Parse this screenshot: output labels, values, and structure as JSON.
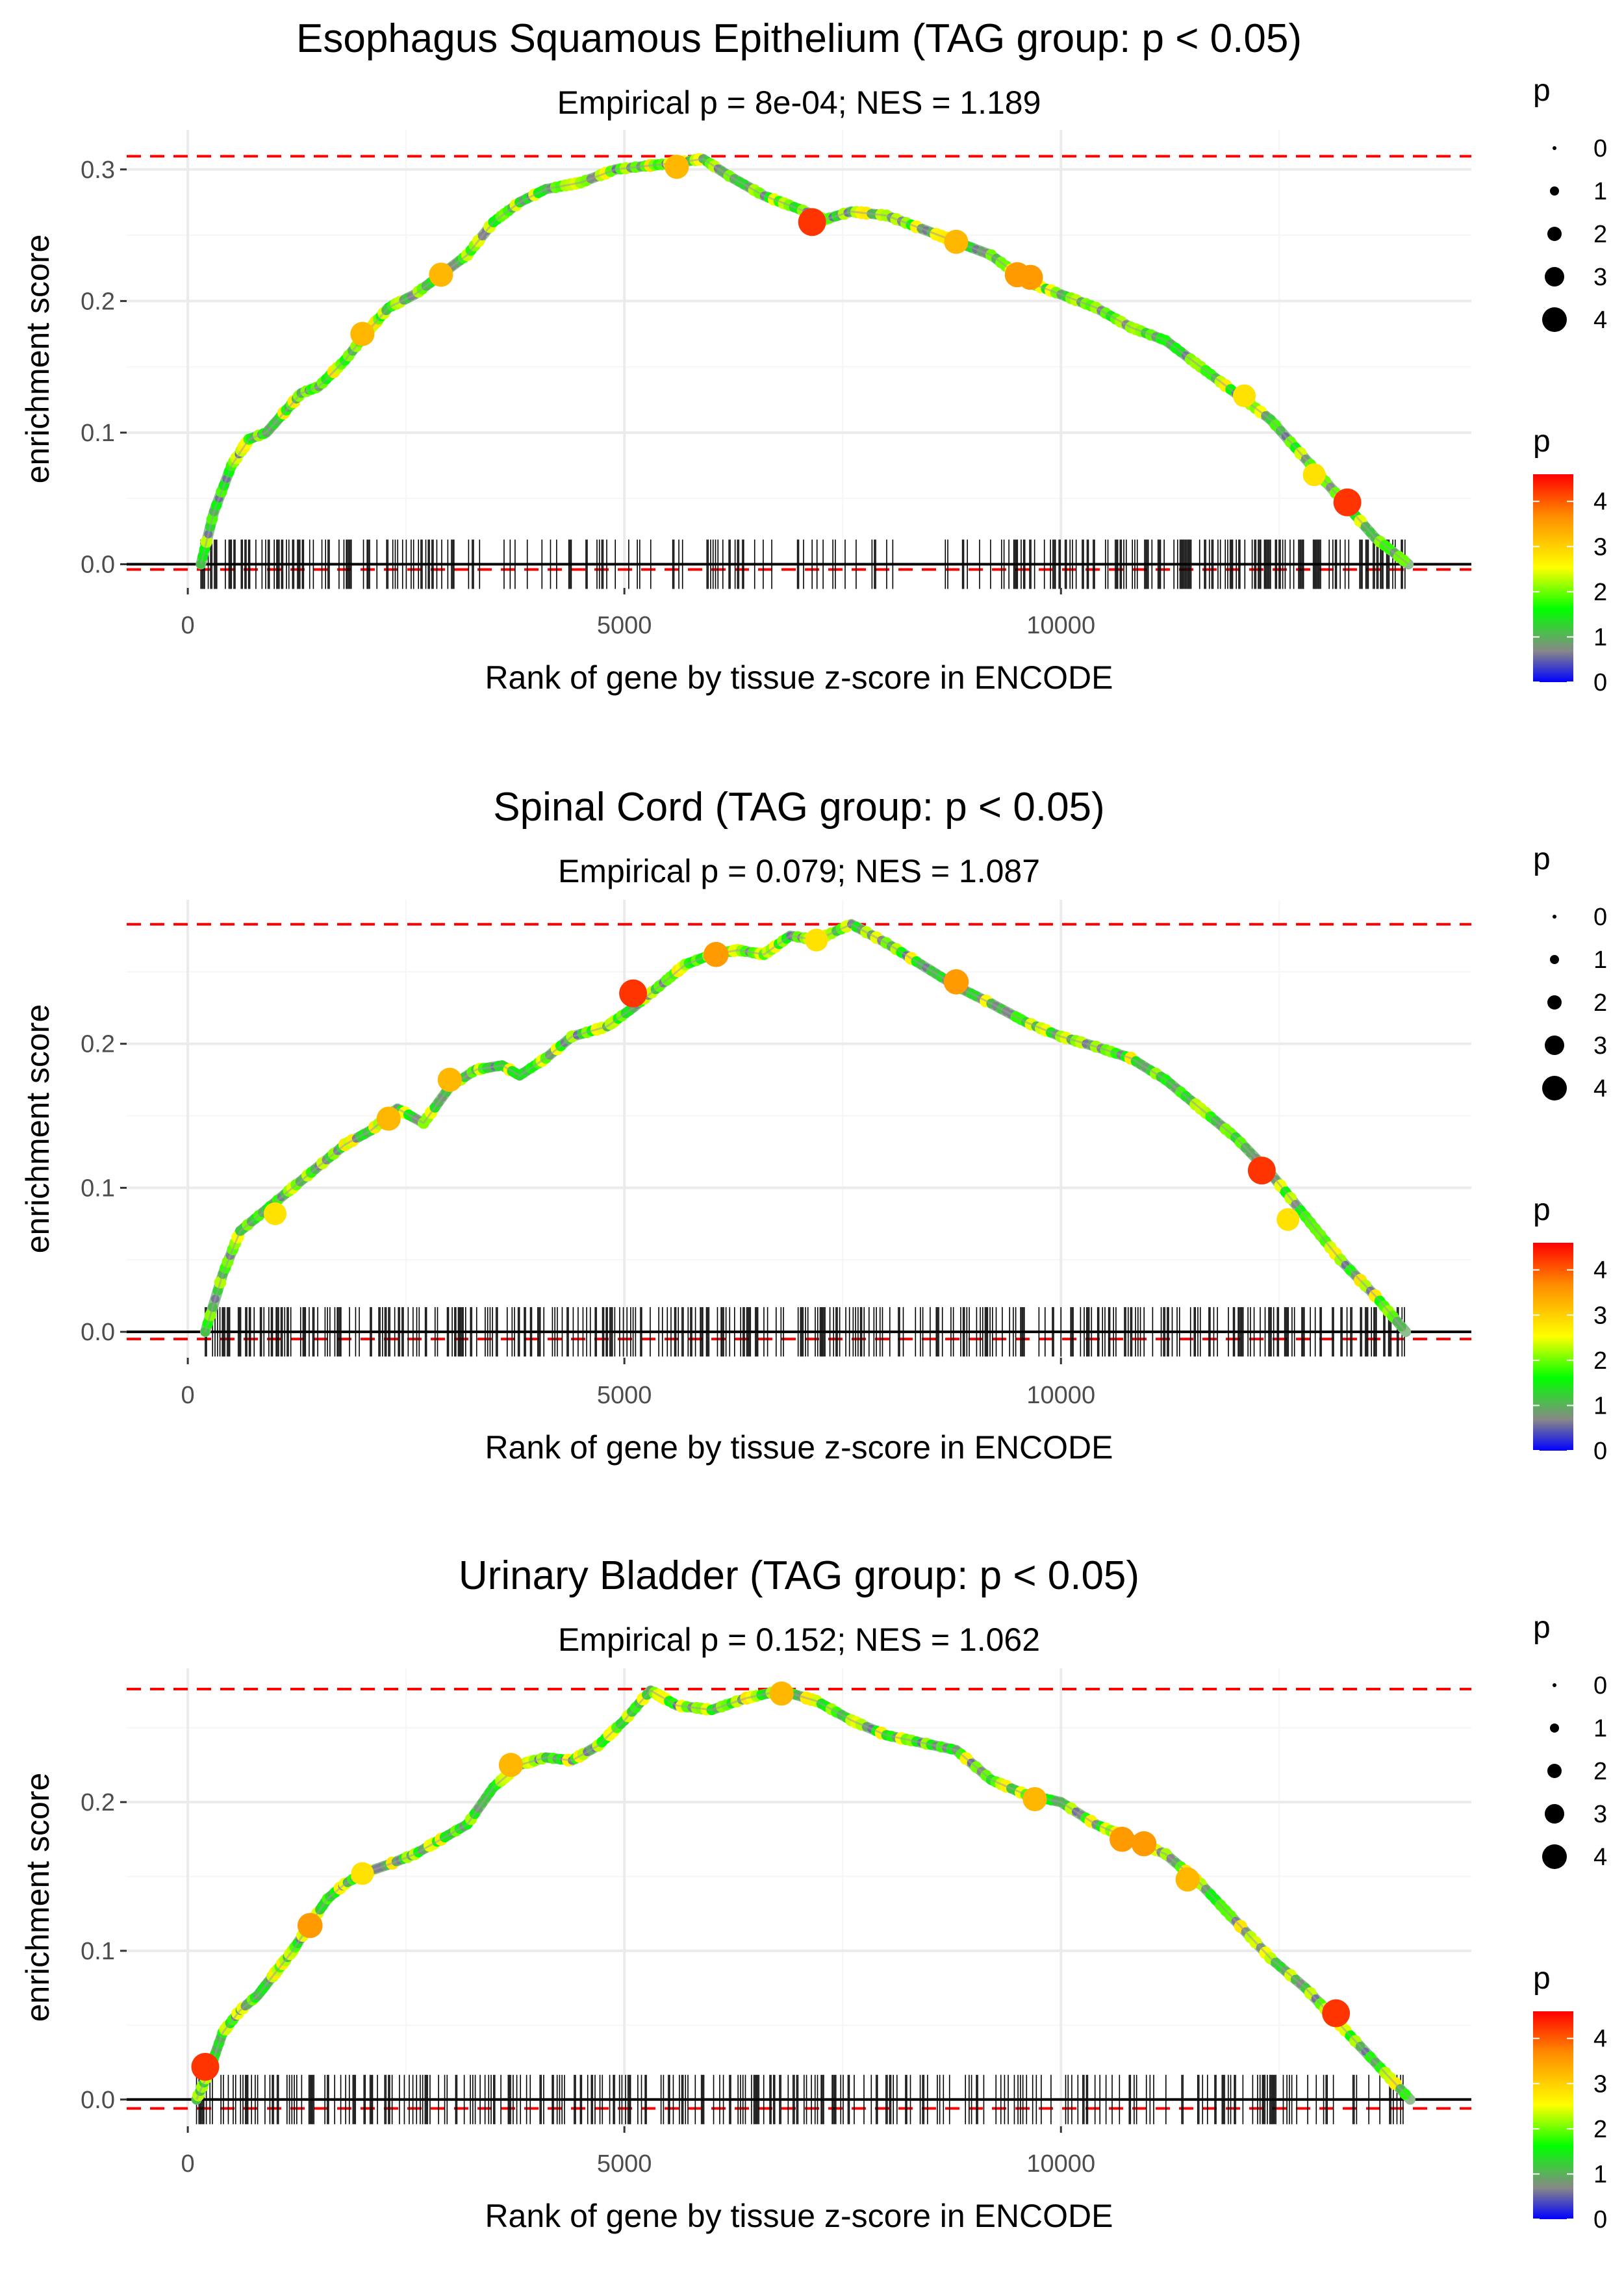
{
  "chart_data": [
    {
      "type": "line",
      "title": "Esophagus Squamous Epithelium (TAG group: p < 0.05)",
      "subtitle": "Empirical p = 8e-04; NES = 1.189",
      "xlabel": "Rank of gene by tissue z-score in ENCODE",
      "ylabel": "enrichment score",
      "xlim": [
        -700,
        14700
      ],
      "ylim": [
        -0.018,
        0.33
      ],
      "x_ticks": [
        0,
        5000,
        10000
      ],
      "x_tick_labels": [
        "0",
        "5000",
        "10000"
      ],
      "y_ticks": [
        0,
        0.1,
        0.2,
        0.3
      ],
      "y_tick_labels": [
        "0.0",
        "0.1",
        "0.2",
        "0.3"
      ],
      "max_es": 0.31,
      "min_es": -0.004,
      "curve": [
        [
          150,
          0.0
        ],
        [
          300,
          0.04
        ],
        [
          500,
          0.075
        ],
        [
          700,
          0.095
        ],
        [
          900,
          0.1
        ],
        [
          1100,
          0.115
        ],
        [
          1300,
          0.13
        ],
        [
          1500,
          0.135
        ],
        [
          1800,
          0.155
        ],
        [
          2100,
          0.18
        ],
        [
          2300,
          0.195
        ],
        [
          2600,
          0.205
        ],
        [
          2900,
          0.22
        ],
        [
          3200,
          0.235
        ],
        [
          3500,
          0.26
        ],
        [
          3800,
          0.275
        ],
        [
          4100,
          0.285
        ],
        [
          4500,
          0.29
        ],
        [
          4900,
          0.3
        ],
        [
          5300,
          0.303
        ],
        [
          5600,
          0.305
        ],
        [
          5900,
          0.308
        ],
        [
          6200,
          0.295
        ],
        [
          6600,
          0.28
        ],
        [
          7000,
          0.27
        ],
        [
          7300,
          0.262
        ],
        [
          7600,
          0.268
        ],
        [
          8000,
          0.265
        ],
        [
          8400,
          0.255
        ],
        [
          8800,
          0.245
        ],
        [
          9200,
          0.235
        ],
        [
          9600,
          0.215
        ],
        [
          10000,
          0.205
        ],
        [
          10400,
          0.195
        ],
        [
          10800,
          0.18
        ],
        [
          11200,
          0.17
        ],
        [
          11600,
          0.15
        ],
        [
          12000,
          0.13
        ],
        [
          12400,
          0.11
        ],
        [
          12800,
          0.08
        ],
        [
          13200,
          0.05
        ],
        [
          13600,
          0.02
        ],
        [
          13980,
          0.0
        ]
      ],
      "highlight_points": [
        [
          2000,
          0.175,
          3.5
        ],
        [
          2900,
          0.22,
          3.5
        ],
        [
          5600,
          0.302,
          3.5
        ],
        [
          7150,
          0.26,
          4.3
        ],
        [
          8800,
          0.245,
          3.5
        ],
        [
          9500,
          0.22,
          3.7
        ],
        [
          9650,
          0.218,
          3.7
        ],
        [
          12100,
          0.128,
          3.2
        ],
        [
          12900,
          0.068,
          3.2
        ],
        [
          13280,
          0.047,
          4.3
        ]
      ],
      "rug_seed": 11,
      "rug_density": [
        0.9,
        0.55,
        0.6,
        0.45,
        1.0,
        1.0
      ]
    },
    {
      "type": "line",
      "title": "Spinal Cord (TAG group: p < 0.05)",
      "subtitle": "Empirical p = 0.079; NES = 1.087",
      "xlabel": "Rank of gene by tissue z-score in ENCODE",
      "ylabel": "enrichment score",
      "xlim": [
        -700,
        14700
      ],
      "ylim": [
        -0.018,
        0.3
      ],
      "x_ticks": [
        0,
        5000,
        10000
      ],
      "x_tick_labels": [
        "0",
        "5000",
        "10000"
      ],
      "y_ticks": [
        0,
        0.1,
        0.2
      ],
      "y_tick_labels": [
        "0.0",
        "0.1",
        "0.2"
      ],
      "max_es": 0.283,
      "min_es": -0.005,
      "curve": [
        [
          200,
          0.0
        ],
        [
          400,
          0.04
        ],
        [
          600,
          0.07
        ],
        [
          900,
          0.085
        ],
        [
          1200,
          0.1
        ],
        [
          1500,
          0.115
        ],
        [
          1800,
          0.13
        ],
        [
          2100,
          0.14
        ],
        [
          2400,
          0.155
        ],
        [
          2700,
          0.145
        ],
        [
          3000,
          0.17
        ],
        [
          3300,
          0.182
        ],
        [
          3600,
          0.185
        ],
        [
          3800,
          0.178
        ],
        [
          4100,
          0.19
        ],
        [
          4400,
          0.205
        ],
        [
          4800,
          0.212
        ],
        [
          5100,
          0.225
        ],
        [
          5400,
          0.24
        ],
        [
          5700,
          0.255
        ],
        [
          6000,
          0.262
        ],
        [
          6300,
          0.265
        ],
        [
          6600,
          0.262
        ],
        [
          6900,
          0.275
        ],
        [
          7200,
          0.272
        ],
        [
          7600,
          0.283
        ],
        [
          8000,
          0.27
        ],
        [
          8400,
          0.255
        ],
        [
          8800,
          0.24
        ],
        [
          9200,
          0.228
        ],
        [
          9600,
          0.215
        ],
        [
          10000,
          0.205
        ],
        [
          10400,
          0.198
        ],
        [
          10800,
          0.19
        ],
        [
          11200,
          0.175
        ],
        [
          11600,
          0.155
        ],
        [
          12000,
          0.135
        ],
        [
          12400,
          0.11
        ],
        [
          12800,
          0.08
        ],
        [
          13200,
          0.05
        ],
        [
          13600,
          0.025
        ],
        [
          13950,
          0.0
        ]
      ],
      "highlight_points": [
        [
          1000,
          0.082,
          3.2
        ],
        [
          2300,
          0.148,
          3.5
        ],
        [
          3000,
          0.175,
          3.5
        ],
        [
          5100,
          0.235,
          4.3
        ],
        [
          6050,
          0.262,
          3.7
        ],
        [
          7200,
          0.272,
          3.2
        ],
        [
          8800,
          0.243,
          3.7
        ],
        [
          12300,
          0.112,
          4.3
        ],
        [
          12600,
          0.078,
          3.2
        ]
      ],
      "rug_seed": 23,
      "rug_density": [
        1.0,
        0.65,
        0.85,
        0.9,
        0.75,
        1.0
      ]
    },
    {
      "type": "line",
      "title": "Urinary Bladder (TAG group: p < 0.05)",
      "subtitle": "Empirical p = 0.152; NES = 1.062",
      "xlabel": "Rank of gene by tissue z-score in ENCODE",
      "ylabel": "enrichment score",
      "xlim": [
        -700,
        14700
      ],
      "ylim": [
        -0.018,
        0.29
      ],
      "x_ticks": [
        0,
        5000,
        10000
      ],
      "x_tick_labels": [
        "0",
        "5000",
        "10000"
      ],
      "y_ticks": [
        0,
        0.1,
        0.2
      ],
      "y_tick_labels": [
        "0.0",
        "0.1",
        "0.2"
      ],
      "max_es": 0.276,
      "min_es": -0.006,
      "curve": [
        [
          100,
          0.0
        ],
        [
          250,
          0.02
        ],
        [
          400,
          0.045
        ],
        [
          600,
          0.06
        ],
        [
          800,
          0.07
        ],
        [
          1000,
          0.085
        ],
        [
          1200,
          0.1
        ],
        [
          1400,
          0.118
        ],
        [
          1600,
          0.135
        ],
        [
          1800,
          0.145
        ],
        [
          2000,
          0.152
        ],
        [
          2300,
          0.158
        ],
        [
          2600,
          0.165
        ],
        [
          2900,
          0.175
        ],
        [
          3200,
          0.185
        ],
        [
          3500,
          0.21
        ],
        [
          3800,
          0.225
        ],
        [
          4100,
          0.23
        ],
        [
          4400,
          0.228
        ],
        [
          4700,
          0.238
        ],
        [
          5000,
          0.255
        ],
        [
          5300,
          0.275
        ],
        [
          5600,
          0.265
        ],
        [
          6000,
          0.262
        ],
        [
          6400,
          0.27
        ],
        [
          6800,
          0.275
        ],
        [
          7200,
          0.268
        ],
        [
          7600,
          0.255
        ],
        [
          8000,
          0.245
        ],
        [
          8400,
          0.24
        ],
        [
          8800,
          0.235
        ],
        [
          9200,
          0.215
        ],
        [
          9600,
          0.205
        ],
        [
          10000,
          0.2
        ],
        [
          10400,
          0.185
        ],
        [
          10800,
          0.175
        ],
        [
          11200,
          0.165
        ],
        [
          11600,
          0.145
        ],
        [
          12000,
          0.12
        ],
        [
          12400,
          0.095
        ],
        [
          12800,
          0.075
        ],
        [
          13200,
          0.05
        ],
        [
          13600,
          0.025
        ],
        [
          14000,
          0.0
        ]
      ],
      "highlight_points": [
        [
          200,
          0.022,
          4.3
        ],
        [
          1400,
          0.117,
          3.7
        ],
        [
          2000,
          0.152,
          3.2
        ],
        [
          3700,
          0.225,
          3.5
        ],
        [
          6800,
          0.273,
          3.5
        ],
        [
          9700,
          0.202,
          3.5
        ],
        [
          10700,
          0.175,
          3.7
        ],
        [
          10950,
          0.172,
          3.7
        ],
        [
          11450,
          0.148,
          3.5
        ],
        [
          13150,
          0.058,
          4.3
        ]
      ],
      "rug_seed": 37,
      "rug_density": [
        0.8,
        0.7,
        0.9,
        0.65,
        0.55,
        0.85
      ]
    }
  ],
  "legend": {
    "size_title": "p",
    "size_labels": [
      "0",
      "1",
      "2",
      "3",
      "4"
    ],
    "color_title": "p",
    "color_labels": [
      "4",
      "3",
      "2",
      "1",
      "0"
    ]
  },
  "colors": {
    "curve_base": "#8fbf8f",
    "zero_line": "#000000",
    "reference_line": "#ff0000",
    "grid": "#ebebeb",
    "gradient": [
      "#ff0000",
      "#ff8c00",
      "#ffff00",
      "#00ff00",
      "#888888",
      "#0000ff"
    ]
  }
}
